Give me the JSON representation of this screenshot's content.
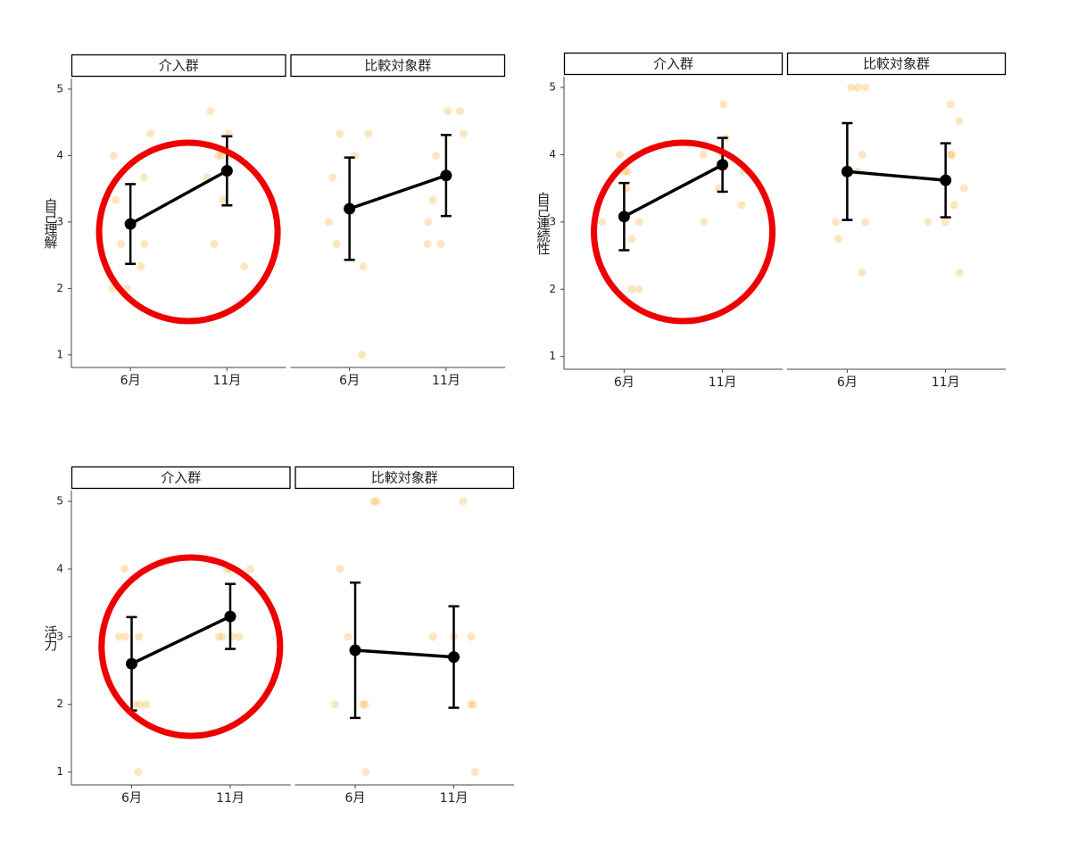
{
  "chart_data": [
    {
      "type": "errorbar",
      "ylabel": "自己理解",
      "ylim": [
        0.81,
        5.16
      ],
      "yticks": [
        1,
        2,
        3,
        4,
        5
      ],
      "categories": [
        "6月",
        "11月"
      ],
      "point_color": "#f7b84b",
      "color": "#000000",
      "facets": [
        {
          "title": "介入群",
          "means": [
            2.97,
            3.77
          ],
          "errors": [
            0.6,
            0.52
          ],
          "points": [
            [
              2.33,
              2,
              2,
              2.67,
              3.33,
              3.67,
              4,
              4.33,
              2.67
            ],
            [
              4,
              4,
              4,
              4.33,
              4.67,
              3.67,
              2.33,
              2.67,
              3.33
            ]
          ]
        },
        {
          "title": "比較対象群",
          "means": [
            3.2,
            3.7
          ],
          "errors": [
            0.77,
            0.61
          ],
          "points": [
            [
              4.33,
              4.33,
              4,
              3.67,
              2.67,
              2.33,
              1,
              3
            ],
            [
              4.67,
              4.67,
              4.33,
              4,
              3.33,
              3,
              2.67,
              2.67
            ]
          ]
        }
      ]
    },
    {
      "type": "errorbar",
      "ylabel": "自己連続性",
      "ylim": [
        0.81,
        5.16
      ],
      "yticks": [
        1,
        2,
        3,
        4,
        5
      ],
      "categories": [
        "6月",
        "11月"
      ],
      "point_color": "#f7b84b",
      "color": "#000000",
      "facets": [
        {
          "title": "介入群",
          "means": [
            3.08,
            3.85
          ],
          "errors": [
            0.5,
            0.4
          ],
          "points": [
            [
              3.75,
              3.75,
              3,
              3,
              2.75,
              2,
              2,
              3.5,
              4
            ],
            [
              4.75,
              4.25,
              4,
              4,
              3.75,
              3.5,
              3.25,
              3
            ]
          ]
        },
        {
          "title": "比較対象群",
          "means": [
            3.75,
            3.62
          ],
          "errors": [
            0.72,
            0.55
          ],
          "points": [
            [
              5,
              5,
              5,
              3.75,
              3.75,
              4,
              3,
              3,
              2.75,
              2.25
            ],
            [
              4.75,
              4.5,
              4,
              4,
              3.5,
              3.25,
              3,
              3,
              2.25
            ]
          ]
        }
      ]
    },
    {
      "type": "errorbar",
      "ylabel": "活力",
      "ylim": [
        0.81,
        5.16
      ],
      "yticks": [
        1,
        2,
        3,
        4,
        5
      ],
      "categories": [
        "6月",
        "11月"
      ],
      "point_color": "#f7b84b",
      "color": "#000000",
      "facets": [
        {
          "title": "介入群",
          "means": [
            2.6,
            3.3
          ],
          "errors": [
            0.69,
            0.48
          ],
          "points": [
            [
              4,
              3,
              3,
              3,
              2,
              2,
              2,
              1
            ],
            [
              4,
              4,
              4,
              3,
              3,
              3,
              3
            ]
          ]
        },
        {
          "title": "比較対象群",
          "means": [
            2.8,
            2.7
          ],
          "errors": [
            1.0,
            0.75
          ],
          "points": [
            [
              5,
              5,
              4,
              3,
              2,
              2,
              2,
              1
            ],
            [
              5,
              3,
              3,
              3,
              2,
              2,
              1
            ]
          ]
        }
      ]
    }
  ]
}
